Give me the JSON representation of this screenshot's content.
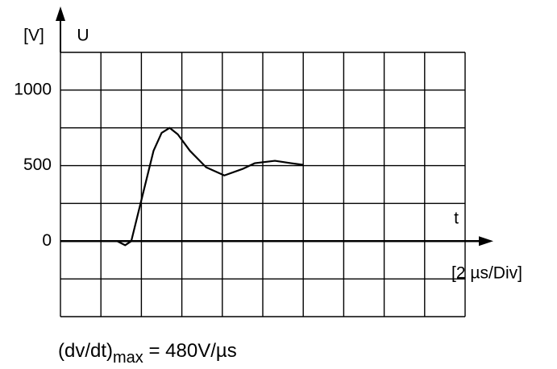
{
  "chart_data": {
    "type": "line",
    "yunit": "[V]",
    "ylabel": "U",
    "xlabel": "t",
    "xunit": "[2 µs/Div]",
    "annotation": [
      "(dv/dt)",
      "max",
      " = 480V/µs"
    ],
    "x": [
      2.8,
      3.2,
      3.5,
      4.0,
      4.6,
      5.0,
      5.4,
      5.8,
      6.4,
      7.2,
      8.1,
      9.0,
      9.6,
      10.6,
      11.4,
      12.0
    ],
    "series": [
      {
        "color": "#000000",
        "values": [
          0,
          -27,
          0,
          272,
          598,
          717,
          750,
          707,
          598,
          489,
          435,
          478,
          516,
          532,
          516,
          505
        ]
      }
    ],
    "xlim": [
      0,
      20
    ],
    "ylim": [
      -500,
      1250
    ],
    "yticks": [
      0,
      500,
      1000
    ],
    "xgrid": [
      0,
      2,
      4,
      6,
      8,
      10,
      12,
      14,
      16,
      18,
      20
    ],
    "ygrid": [
      -500,
      -250,
      0,
      250,
      500,
      750,
      1000,
      1250
    ],
    "grid": true
  }
}
